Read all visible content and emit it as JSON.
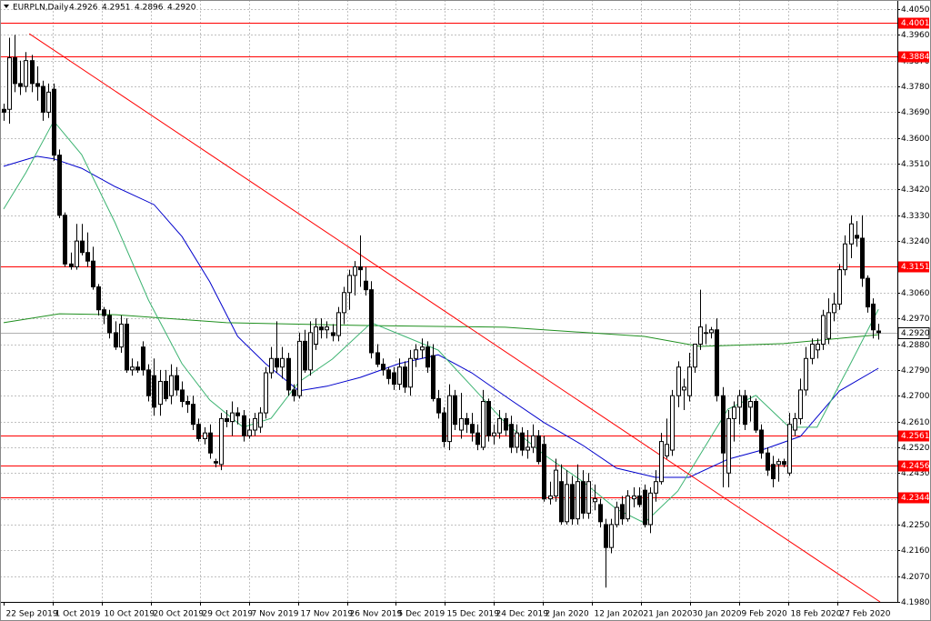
{
  "chart_data": {
    "type": "candlestick",
    "symbol": "EURPLN,Daily",
    "header_values": [
      4.2926,
      4.2951,
      4.2896,
      {
        "value": 4.292,
        "label": "4.2920"
      }
    ],
    "xlim": [
      -0.65,
      160.4
    ],
    "ylim": [
      4.198,
      4.405
    ],
    "yticks": [
      {
        "value": 4.405,
        "label": "4.4050"
      },
      {
        "value": 4.396,
        "label": "4.3960"
      },
      {
        "value": 4.387,
        "label": "4.3870"
      },
      {
        "value": 4.378,
        "label": "4.3780"
      },
      {
        "value": 4.369,
        "label": "4.3690"
      },
      {
        "value": 4.36,
        "label": "4.3600"
      },
      {
        "value": 4.351,
        "label": "4.3510"
      },
      {
        "value": 4.342,
        "label": "4.3420"
      },
      {
        "value": 4.333,
        "label": "4.3330"
      },
      {
        "value": 4.324,
        "label": "4.3240"
      },
      {
        "value": 4.315,
        "label": "4.3150"
      },
      {
        "value": 4.306,
        "label": "4.3060"
      },
      {
        "value": 4.297,
        "label": "4.2970"
      },
      {
        "value": 4.288,
        "label": "4.2880"
      },
      {
        "value": 4.279,
        "label": "4.2790"
      },
      {
        "value": 4.27,
        "label": "4.2700"
      },
      {
        "value": 4.261,
        "label": "4.2610"
      },
      {
        "value": 4.252,
        "label": "4.2520"
      },
      {
        "value": 4.243,
        "label": "4.2430"
      },
      {
        "value": 4.234,
        "label": "4.2340"
      },
      {
        "value": 4.225,
        "label": "4.2250"
      },
      {
        "value": 4.216,
        "label": "4.2160"
      },
      {
        "value": 4.207,
        "label": "4.2070"
      },
      {
        "value": 4.198,
        "label": "4.1980"
      }
    ],
    "xticks": [
      {
        "value": 0,
        "label": "22 Sep 2019"
      },
      {
        "value": 8.8,
        "label": "1 Oct 2019"
      },
      {
        "value": 17.6,
        "label": "10 Oct 2019"
      },
      {
        "value": 26.4,
        "label": "20 Oct 2019"
      },
      {
        "value": 35.2,
        "label": "29 Oct 2019"
      },
      {
        "value": 44,
        "label": "7 Nov 2019"
      },
      {
        "value": 52.8,
        "label": "17 Nov 2019"
      },
      {
        "value": 61.6,
        "label": "26 Nov 2019"
      },
      {
        "value": 70.4,
        "label": "5 Dec 2019"
      },
      {
        "value": 79.2,
        "label": "15 Dec 2019"
      },
      {
        "value": 88,
        "label": "24 Dec 2019"
      },
      {
        "value": 96.8,
        "label": "2 Jan 2020"
      },
      {
        "value": 105.6,
        "label": "12 Jan 2020"
      },
      {
        "value": 114.4,
        "label": "21 Jan 2020"
      },
      {
        "value": 123.2,
        "label": "30 Jan 2020"
      },
      {
        "value": 132,
        "label": "9 Feb 2020"
      },
      {
        "value": 140.8,
        "label": "18 Feb 2020"
      },
      {
        "value": 149.6,
        "label": "27 Feb 2020"
      }
    ],
    "grid": true,
    "up_color": "#ffffff",
    "down_color": "#000000",
    "levels": [
      4.4001,
      4.3884,
      4.3151,
      4.2561,
      4.2456,
      4.2344
    ],
    "level_color": "#ff0000",
    "last_price": {
      "value": 4.292,
      "label": "4.2920"
    },
    "trendline": {
      "color": "#ff0000",
      "x": [
        4.6,
        157.3
      ],
      "values": [
        4.3964,
        4.198
      ]
    },
    "series": [
      {
        "color": "#0000cc",
        "x": [
          0,
          6,
          9,
          14,
          20,
          27,
          32,
          37,
          42,
          47,
          53,
          58,
          64,
          71,
          78,
          84,
          91,
          97,
          104,
          110,
          117,
          123,
          130,
          136,
          143,
          150,
          157
        ],
        "values": [
          4.3501,
          4.3536,
          4.3527,
          4.3494,
          4.343,
          4.3367,
          4.3256,
          4.3098,
          4.2907,
          4.2812,
          4.2717,
          4.2733,
          4.2764,
          4.2812,
          4.2843,
          4.278,
          4.2685,
          4.2606,
          4.2526,
          4.2447,
          4.2415,
          4.2415,
          4.2478,
          4.251,
          4.2558,
          4.2717,
          4.2796
        ]
      },
      {
        "color": "#1f8f1f",
        "x": [
          0,
          10,
          20,
          40,
          65,
          90,
          115,
          125,
          140,
          157
        ],
        "values": [
          4.2955,
          4.2986,
          4.2983,
          4.2955,
          4.2945,
          4.2939,
          4.2907,
          4.2872,
          4.2882,
          4.2913
        ]
      },
      {
        "color": "#3cb371",
        "x": [
          0,
          4,
          9,
          14,
          20,
          26,
          32,
          37,
          43,
          48,
          53,
          59,
          66,
          72,
          78,
          84,
          90,
          97,
          104,
          110,
          115,
          121,
          130,
          135,
          141,
          146,
          152,
          157
        ],
        "values": [
          4.3352,
          4.3479,
          4.3659,
          4.3542,
          4.3304,
          4.3034,
          4.2812,
          4.2685,
          4.259,
          4.2621,
          4.2748,
          4.2828,
          4.2955,
          4.2907,
          4.2859,
          4.2733,
          4.2606,
          4.2494,
          4.2399,
          4.2304,
          4.2256,
          4.2367,
          4.2653,
          4.2701,
          4.259,
          4.259,
          4.2812,
          4.3002
        ]
      }
    ],
    "ohlc": [
      [
        4.37,
        4.372,
        4.366,
        4.369
      ],
      [
        4.37,
        4.395,
        4.365,
        4.388
      ],
      [
        4.388,
        4.396,
        4.376,
        4.379
      ],
      [
        4.379,
        4.387,
        4.375,
        4.378
      ],
      [
        4.378,
        4.39,
        4.376,
        4.387
      ],
      [
        4.387,
        4.389,
        4.376,
        4.379
      ],
      [
        4.379,
        4.385,
        4.373,
        4.378
      ],
      [
        4.378,
        4.38,
        4.366,
        4.369
      ],
      [
        4.369,
        4.379,
        4.367,
        4.376
      ],
      [
        4.377,
        4.379,
        4.352,
        4.354
      ],
      [
        4.354,
        4.356,
        4.332,
        4.333
      ],
      [
        4.333,
        4.334,
        4.315,
        4.316
      ],
      [
        4.316,
        4.32,
        4.314,
        4.315
      ],
      [
        4.315,
        4.33,
        4.314,
        4.324
      ],
      [
        4.324,
        4.33,
        4.319,
        4.32
      ],
      [
        4.32,
        4.327,
        4.315,
        4.317
      ],
      [
        4.317,
        4.322,
        4.307,
        4.308
      ],
      [
        4.308,
        4.309,
        4.298,
        4.3
      ],
      [
        4.3,
        4.301,
        4.295,
        4.298
      ],
      [
        4.298,
        4.3,
        4.29,
        4.292
      ],
      [
        4.292,
        4.296,
        4.286,
        4.287
      ],
      [
        4.287,
        4.298,
        4.285,
        4.295
      ],
      [
        4.295,
        4.297,
        4.278,
        4.279
      ],
      [
        4.279,
        4.283,
        4.277,
        4.28
      ],
      [
        4.28,
        4.282,
        4.278,
        4.279
      ],
      [
        4.287,
        4.289,
        4.277,
        4.279
      ],
      [
        4.279,
        4.281,
        4.268,
        4.27
      ],
      [
        4.277,
        4.283,
        4.263,
        4.266
      ],
      [
        4.267,
        4.279,
        4.263,
        4.275
      ],
      [
        4.275,
        4.279,
        4.268,
        4.269
      ],
      [
        4.27,
        4.281,
        4.267,
        4.277
      ],
      [
        4.277,
        4.28,
        4.27,
        4.272
      ],
      [
        4.272,
        4.275,
        4.266,
        4.268
      ],
      [
        4.268,
        4.27,
        4.264,
        4.267
      ],
      [
        4.267,
        4.27,
        4.258,
        4.26
      ],
      [
        4.26,
        4.262,
        4.254,
        4.255
      ],
      [
        4.255,
        4.259,
        4.253,
        4.257
      ],
      [
        4.257,
        4.26,
        4.248,
        4.25
      ],
      [
        4.247,
        4.248,
        4.245,
        4.2465
      ],
      [
        4.246,
        4.264,
        4.244,
        4.262
      ],
      [
        4.262,
        4.265,
        4.259,
        4.261
      ],
      [
        4.261,
        4.268,
        4.256,
        4.264
      ],
      [
        4.264,
        4.266,
        4.26,
        4.263
      ],
      [
        4.263,
        4.265,
        4.254,
        4.256
      ],
      [
        4.256,
        4.262,
        4.255,
        4.258
      ],
      [
        4.258,
        4.264,
        4.256,
        4.262
      ],
      [
        4.259,
        4.266,
        4.257,
        4.264
      ],
      [
        4.264,
        4.28,
        4.262,
        4.278
      ],
      [
        4.278,
        4.287,
        4.276,
        4.283
      ],
      [
        4.283,
        4.296,
        4.278,
        4.28
      ],
      [
        4.28,
        4.287,
        4.276,
        4.283
      ],
      [
        4.283,
        4.285,
        4.27,
        4.272
      ],
      [
        4.272,
        4.274,
        4.268,
        4.27
      ],
      [
        4.27,
        4.292,
        4.269,
        4.289
      ],
      [
        4.289,
        4.293,
        4.278,
        4.279
      ],
      [
        4.279,
        4.296,
        4.277,
        4.292
      ],
      [
        4.288,
        4.297,
        4.286,
        4.294
      ],
      [
        4.294,
        4.297,
        4.29,
        4.293
      ],
      [
        4.293,
        4.296,
        4.29,
        4.294
      ],
      [
        4.292,
        4.295,
        4.289,
        4.291
      ],
      [
        4.291,
        4.301,
        4.289,
        4.299
      ],
      [
        4.299,
        4.308,
        4.295,
        4.306
      ],
      [
        4.306,
        4.314,
        4.3,
        4.312
      ],
      [
        4.312,
        4.317,
        4.305,
        4.315
      ],
      [
        4.315,
        4.326,
        4.308,
        4.314
      ],
      [
        4.31,
        4.315,
        4.305,
        4.307
      ],
      [
        4.307,
        4.31,
        4.283,
        4.285
      ],
      [
        4.285,
        4.288,
        4.28,
        4.281
      ],
      [
        4.281,
        4.283,
        4.277,
        4.279
      ],
      [
        4.279,
        4.28,
        4.274,
        4.276
      ],
      [
        4.278,
        4.28,
        4.272,
        4.274
      ],
      [
        4.274,
        4.283,
        4.272,
        4.28
      ],
      [
        4.28,
        4.282,
        4.271,
        4.273
      ],
      [
        4.273,
        4.286,
        4.27,
        4.283
      ],
      [
        4.283,
        4.288,
        4.28,
        4.286
      ],
      [
        4.286,
        4.29,
        4.283,
        4.287
      ],
      [
        4.287,
        4.289,
        4.278,
        4.28
      ],
      [
        4.284,
        4.288,
        4.268,
        4.269
      ],
      [
        4.269,
        4.272,
        4.262,
        4.264
      ],
      [
        4.264,
        4.266,
        4.252,
        4.254
      ],
      [
        4.254,
        4.274,
        4.251,
        4.27
      ],
      [
        4.27,
        4.272,
        4.258,
        4.26
      ],
      [
        4.258,
        4.271,
        4.255,
        4.262
      ],
      [
        4.262,
        4.264,
        4.257,
        4.26
      ],
      [
        4.26,
        4.264,
        4.254,
        4.257
      ],
      [
        4.257,
        4.26,
        4.251,
        4.253
      ],
      [
        4.252,
        4.272,
        4.251,
        4.268
      ],
      [
        4.268,
        4.269,
        4.254,
        4.256
      ],
      [
        4.256,
        4.26,
        4.253,
        4.257
      ],
      [
        4.257,
        4.265,
        4.255,
        4.262
      ],
      [
        4.262,
        4.264,
        4.256,
        4.258
      ],
      [
        4.26,
        4.263,
        4.25,
        4.252
      ],
      [
        4.252,
        4.26,
        4.25,
        4.257
      ],
      [
        4.257,
        4.259,
        4.249,
        4.251
      ],
      [
        4.251,
        4.258,
        4.248,
        4.252
      ],
      [
        4.252,
        4.26,
        4.25,
        4.256
      ],
      [
        4.256,
        4.258,
        4.246,
        4.247
      ],
      [
        4.253,
        4.256,
        4.233,
        4.234
      ],
      [
        4.234,
        4.24,
        4.232,
        4.235
      ],
      [
        4.235,
        4.248,
        4.233,
        4.244
      ],
      [
        4.24,
        4.246,
        4.225,
        4.226
      ],
      [
        4.226,
        4.244,
        4.225,
        4.239
      ],
      [
        4.239,
        4.242,
        4.225,
        4.227
      ],
      [
        4.227,
        4.246,
        4.225,
        4.24
      ],
      [
        4.24,
        4.244,
        4.227,
        4.229
      ],
      [
        4.229,
        4.243,
        4.227,
        4.24
      ],
      [
        4.233,
        4.239,
        4.23,
        4.234
      ],
      [
        4.232,
        4.234,
        4.224,
        4.226
      ],
      [
        4.225,
        4.227,
        4.203,
        4.217
      ],
      [
        4.217,
        4.227,
        4.215,
        4.225
      ],
      [
        4.225,
        4.233,
        4.224,
        4.231
      ],
      [
        4.232,
        4.235,
        4.225,
        4.227
      ],
      [
        4.227,
        4.237,
        4.226,
        4.235
      ],
      [
        4.234,
        4.238,
        4.231,
        4.235
      ],
      [
        4.235,
        4.238,
        4.231,
        4.232
      ],
      [
        4.237,
        4.239,
        4.224,
        4.225
      ],
      [
        4.225,
        4.238,
        4.222,
        4.236
      ],
      [
        4.236,
        4.244,
        4.233,
        4.24
      ],
      [
        4.24,
        4.257,
        4.239,
        4.254
      ],
      [
        4.249,
        4.262,
        4.248,
        4.253
      ],
      [
        4.251,
        4.272,
        4.249,
        4.27
      ],
      [
        4.27,
        4.282,
        4.266,
        4.28
      ],
      [
        4.272,
        4.276,
        4.265,
        4.273
      ],
      [
        4.27,
        4.285,
        4.268,
        4.28
      ],
      [
        4.28,
        4.288,
        4.278,
        4.288
      ],
      [
        4.288,
        4.307,
        4.286,
        4.294
      ],
      [
        4.292,
        4.295,
        4.288,
        4.292
      ],
      [
        4.292,
        4.294,
        4.29,
        4.293
      ],
      [
        4.293,
        4.297,
        4.268,
        4.27
      ],
      [
        4.27,
        4.273,
        4.238,
        4.25
      ],
      [
        4.243,
        4.265,
        4.238,
        4.262
      ],
      [
        4.262,
        4.268,
        4.254,
        4.266
      ],
      [
        4.266,
        4.272,
        4.26,
        4.27
      ],
      [
        4.27,
        4.272,
        4.258,
        4.26
      ],
      [
        4.266,
        4.27,
        4.261,
        4.268
      ],
      [
        4.268,
        4.269,
        4.257,
        4.258
      ],
      [
        4.258,
        4.26,
        4.248,
        4.25
      ],
      [
        4.25,
        4.252,
        4.242,
        4.244
      ],
      [
        4.246,
        4.249,
        4.238,
        4.241
      ],
      [
        4.246,
        4.248,
        4.24,
        4.247
      ],
      [
        4.247,
        4.248,
        4.245,
        4.246
      ],
      [
        4.243,
        4.264,
        4.242,
        4.26
      ],
      [
        4.258,
        4.264,
        4.256,
        4.262
      ],
      [
        4.262,
        4.276,
        4.26,
        4.272
      ],
      [
        4.272,
        4.287,
        4.27,
        4.283
      ],
      [
        4.283,
        4.29,
        4.281,
        4.288
      ],
      [
        4.286,
        4.29,
        4.283,
        4.288
      ],
      [
        4.288,
        4.3,
        4.286,
        4.298
      ],
      [
        4.29,
        4.304,
        4.288,
        4.299
      ],
      [
        4.299,
        4.306,
        4.296,
        4.302
      ],
      [
        4.302,
        4.316,
        4.3,
        4.314
      ],
      [
        4.314,
        4.326,
        4.312,
        4.323
      ],
      [
        4.323,
        4.333,
        4.318,
        4.33
      ],
      [
        4.326,
        4.331,
        4.322,
        4.325
      ],
      [
        4.325,
        4.333,
        4.308,
        4.311
      ],
      [
        4.311,
        4.312,
        4.299,
        4.301
      ],
      [
        4.302,
        4.304,
        4.29,
        4.293
      ],
      [
        4.2926,
        4.2951,
        4.2896,
        4.292
      ]
    ]
  }
}
